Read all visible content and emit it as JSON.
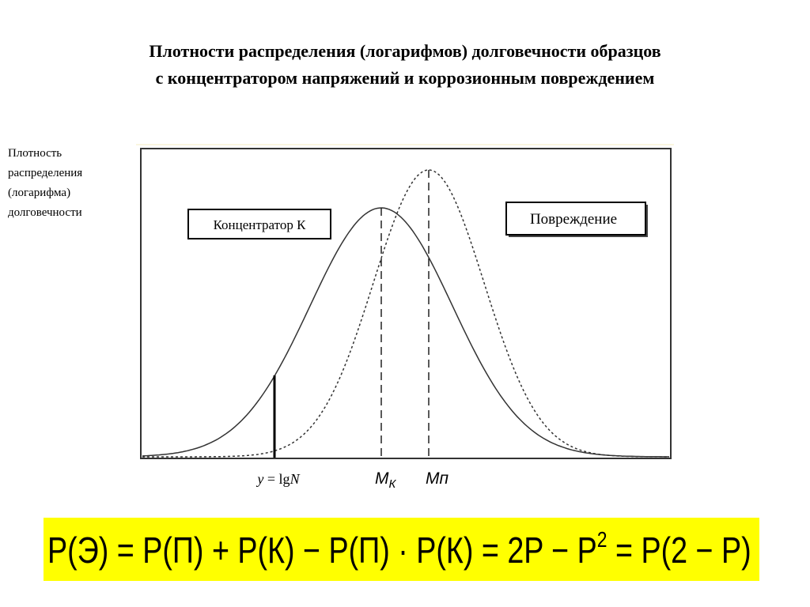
{
  "title": [
    "Плотности распределения (логарифмов) долговечности  образцов",
    "с концентратором напряжений и коррозионным повреждением"
  ],
  "y_label": [
    "Плотность",
    "распределения",
    "(логарифма)",
    "долговечности"
  ],
  "boxes": [
    "Концентратор К",
    "Повреждение"
  ],
  "x_label": {
    "y": "y",
    "eq": " = lg",
    "n": "N"
  },
  "markers": {
    "mk_main": "М",
    "mk_sub": "К",
    "mp": "Мп"
  },
  "formula": {
    "main": "P(Э) = P(П) + P(К) − P(П) · P(К) = 2P − P",
    "power": "2",
    "tail": " = P(2 − P)"
  }
}
